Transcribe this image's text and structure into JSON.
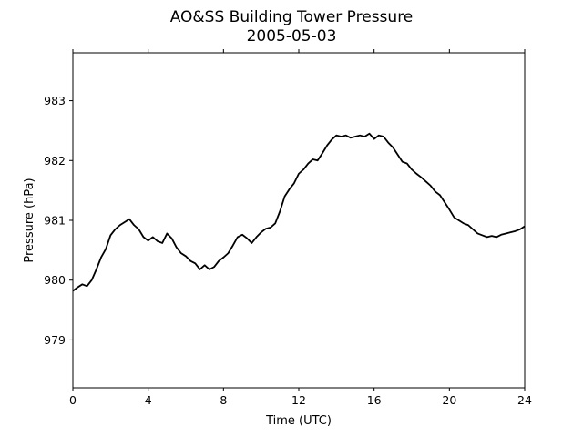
{
  "chart_data": {
    "type": "line",
    "title": "AO&SS Building Tower Pressure",
    "subtitle": "2005-05-03",
    "xlabel": "Time (UTC)",
    "ylabel": "Pressure (hPa)",
    "xlim": [
      0,
      24
    ],
    "ylim": [
      978.2,
      983.8
    ],
    "xticks": [
      0,
      4,
      8,
      12,
      16,
      20,
      24
    ],
    "yticks": [
      979,
      980,
      981,
      982,
      983
    ],
    "grid": false,
    "line_color": "#000000",
    "series": [
      {
        "x": [
          0,
          0.25,
          0.5,
          0.75,
          1.0,
          1.25,
          1.5,
          1.75,
          2.0,
          2.25,
          2.5,
          2.75,
          3.0,
          3.25,
          3.5,
          3.75,
          4.0,
          4.25,
          4.5,
          4.75,
          5.0,
          5.25,
          5.5,
          5.75,
          6.0,
          6.25,
          6.5,
          6.75,
          7.0,
          7.25,
          7.5,
          7.75,
          8.0,
          8.25,
          8.5,
          8.75,
          9.0,
          9.25,
          9.5,
          9.75,
          10.0,
          10.25,
          10.5,
          10.75,
          11.0,
          11.25,
          11.5,
          11.75,
          12.0,
          12.25,
          12.5,
          12.75,
          13.0,
          13.25,
          13.5,
          13.75,
          14.0,
          14.25,
          14.5,
          14.75,
          15.0,
          15.25,
          15.5,
          15.75,
          16.0,
          16.25,
          16.5,
          16.75,
          17.0,
          17.25,
          17.5,
          17.75,
          18.0,
          18.25,
          18.5,
          18.75,
          19.0,
          19.25,
          19.5,
          19.75,
          20.0,
          20.25,
          20.5,
          20.75,
          21.0,
          21.25,
          21.5,
          21.75,
          22.0,
          22.25,
          22.5,
          22.75,
          23.0,
          23.25,
          23.5,
          23.75,
          24.0
        ],
        "values": [
          979.82,
          979.88,
          979.93,
          979.9,
          980.0,
          980.18,
          980.38,
          980.52,
          980.75,
          980.85,
          980.92,
          980.97,
          981.02,
          980.92,
          980.85,
          980.72,
          980.66,
          980.72,
          980.65,
          980.62,
          980.78,
          980.7,
          980.55,
          980.45,
          980.4,
          980.32,
          980.28,
          980.18,
          980.25,
          980.18,
          980.22,
          980.32,
          980.38,
          980.45,
          980.58,
          980.72,
          980.76,
          980.7,
          980.62,
          980.72,
          980.8,
          980.86,
          980.88,
          980.95,
          981.15,
          981.4,
          981.52,
          981.62,
          981.78,
          981.85,
          981.95,
          982.02,
          982.0,
          982.12,
          982.25,
          982.35,
          982.42,
          982.4,
          982.42,
          982.38,
          982.4,
          982.42,
          982.4,
          982.45,
          982.36,
          982.42,
          982.4,
          982.3,
          982.22,
          982.1,
          981.98,
          981.95,
          981.85,
          981.78,
          981.72,
          981.65,
          981.58,
          981.48,
          981.42,
          981.3,
          981.18,
          981.05,
          981.0,
          980.95,
          980.92,
          980.85,
          980.78,
          980.75,
          980.72,
          980.74,
          980.72,
          980.76,
          980.78,
          980.8,
          980.82,
          980.85,
          980.9
        ]
      }
    ]
  }
}
